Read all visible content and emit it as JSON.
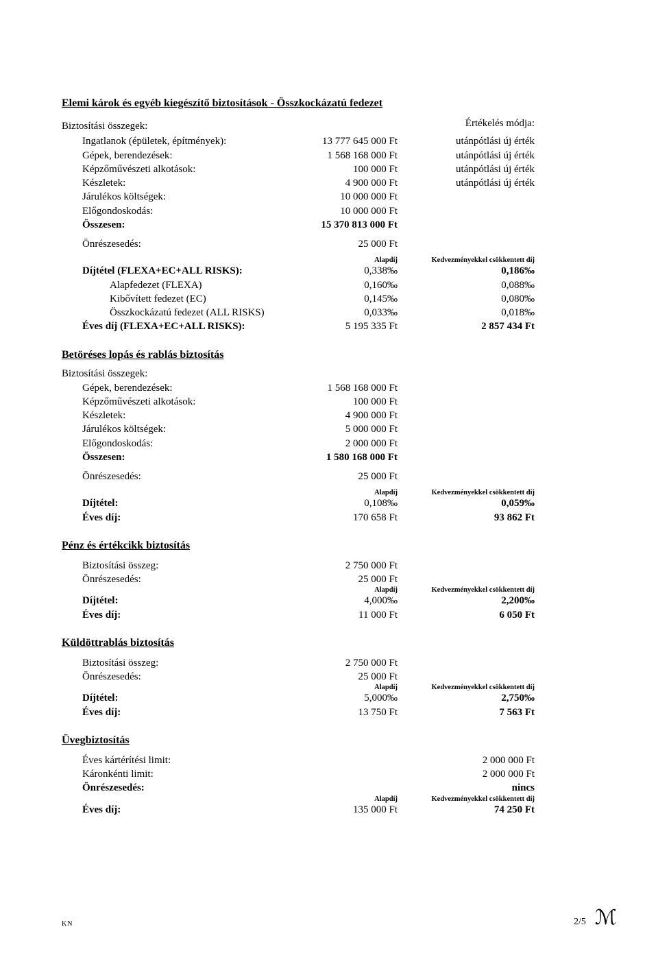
{
  "sec1": {
    "title": "Elemi károk és egyéb kiegészítő biztosítások - Összkockázatú fedezet",
    "sums_label": "Biztosítási összegek:",
    "eval_label": "Értékelés módja:",
    "rows": [
      {
        "label": "Ingatlanok (épületek, építmények):",
        "val": "13 777 645 000 Ft",
        "note": "utánpótlási új érték"
      },
      {
        "label": "Gépek, berendezések:",
        "val": "1 568 168 000 Ft",
        "note": "utánpótlási új érték"
      },
      {
        "label": "Képzőművészeti alkotások:",
        "val": "100 000 Ft",
        "note": "utánpótlási új érték"
      },
      {
        "label": "Készletek:",
        "val": "4 900 000 Ft",
        "note": "utánpótlási új érték"
      },
      {
        "label": "Járulékos költségek:",
        "val": "10 000 000 Ft",
        "note": ""
      },
      {
        "label": "Előgondoskodás:",
        "val": "10 000 000 Ft",
        "note": ""
      }
    ],
    "total_label": "Összesen:",
    "total_val": "15 370 813 000 Ft",
    "deduct_label": "Önrészesedés:",
    "deduct_val": "25 000 Ft",
    "col_alap": "Alapdíj",
    "col_kedv": "Kedvezményekkel csökkentett díj",
    "rate_rows": [
      {
        "label": "Díjtétel (FLEXA+EC+ALL RISKS):",
        "a": "0,338‰",
        "b": "0,186‰",
        "bold": true,
        "indent": "c1"
      },
      {
        "label": "Alapfedezet (FLEXA)",
        "a": "0,160‰",
        "b": "0,088‰",
        "bold": false,
        "indent": "indent2"
      },
      {
        "label": "Kibővített fedezet (EC)",
        "a": "0,145‰",
        "b": "0,080‰",
        "bold": false,
        "indent": "indent2"
      },
      {
        "label": "Összkockázatú fedezet (ALL RISKS)",
        "a": "0,033‰",
        "b": "0,018‰",
        "bold": false,
        "indent": "indent2"
      },
      {
        "label": "Éves díj (FLEXA+EC+ALL RISKS):",
        "a": "5 195 335 Ft",
        "b": "2 857 434 Ft",
        "bold": true,
        "indent": "c1"
      }
    ]
  },
  "sec2": {
    "title": "Betöréses lopás és rablás biztosítás",
    "sums_label": "Biztosítási összegek:",
    "rows": [
      {
        "label": "Gépek, berendezések:",
        "val": "1 568 168 000 Ft"
      },
      {
        "label": "Képzőművészeti alkotások:",
        "val": "100 000 Ft"
      },
      {
        "label": "Készletek:",
        "val": "4 900 000 Ft"
      },
      {
        "label": "Járulékos költségek:",
        "val": "5 000 000 Ft"
      },
      {
        "label": "Előgondoskodás:",
        "val": "2 000 000 Ft"
      }
    ],
    "total_label": "Összesen:",
    "total_val": "1 580 168 000 Ft",
    "deduct_label": "Önrészesedés:",
    "deduct_val": "25 000 Ft",
    "col_alap": "Alapdíj",
    "col_kedv": "Kedvezményekkel csökkentett díj",
    "rate_label": "Díjtétel:",
    "rate_a": "0,108‰",
    "rate_b": "0,059‰",
    "fee_label": "Éves díj:",
    "fee_a": "170 658 Ft",
    "fee_b": "93 862 Ft"
  },
  "sec3": {
    "title": "Pénz és értékcikk biztosítás",
    "sum_label": "Biztosítási összeg:",
    "sum_val": "2 750 000 Ft",
    "deduct_label": "Önrészesedés:",
    "deduct_val": "25 000 Ft",
    "col_alap": "Alapdíj",
    "col_kedv": "Kedvezményekkel csökkentett díj",
    "rate_label": "Díjtétel:",
    "rate_a": "4,000‰",
    "rate_b": "2,200‰",
    "fee_label": "Éves díj:",
    "fee_a": "11 000 Ft",
    "fee_b": "6 050 Ft"
  },
  "sec4": {
    "title": "Küldöttrablás biztosítás",
    "sum_label": "Biztosítási összeg:",
    "sum_val": "2 750 000 Ft",
    "deduct_label": "Önrészesedés:",
    "deduct_val": "25 000 Ft",
    "col_alap": "Alapdíj",
    "col_kedv": "Kedvezményekkel csökkentett díj",
    "rate_label": "Díjtétel:",
    "rate_a": "5,000‰",
    "rate_b": "2,750‰",
    "fee_label": "Éves díj:",
    "fee_a": "13 750 Ft",
    "fee_b": "7 563 Ft"
  },
  "sec5": {
    "title": "Üvegbiztosítás",
    "row1_label": "Éves kártérítési limit:",
    "row1_val": "2 000 000 Ft",
    "row2_label": "Káronkénti limit:",
    "row2_val": "2 000 000 Ft",
    "deduct_label": "Önrészesedés:",
    "deduct_val": "nincs",
    "col_alap": "Alapdíj",
    "col_kedv": "Kedvezményekkel csökkentett díj",
    "fee_label": "Éves díj:",
    "fee_a": "135 000 Ft",
    "fee_b": "74 250 Ft"
  },
  "footer": {
    "kn": "KN",
    "page": "2/5"
  }
}
